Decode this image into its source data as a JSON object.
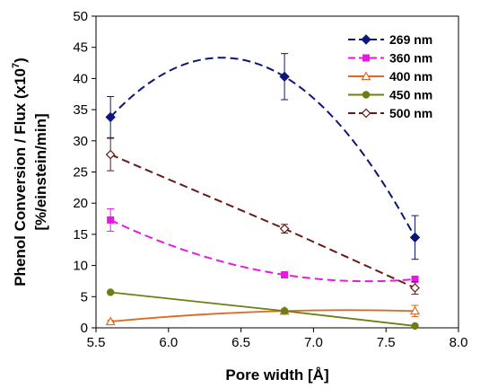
{
  "chart_data": {
    "type": "line",
    "xlabel": "Pore width [Å]",
    "ylabel_line1_prefix": "Phenol Conversion / Flux (x10",
    "ylabel_line1_sup": "7",
    "ylabel_line1_suffix": ")",
    "ylabel_line2": "[%/einstein/min]",
    "xlim": [
      5.5,
      8.0
    ],
    "ylim": [
      0,
      50
    ],
    "xticks": [
      5.5,
      6.0,
      6.5,
      7.0,
      7.5,
      8.0
    ],
    "xtick_labels": [
      "5.5",
      "6.0",
      "6.5",
      "7.0",
      "7.5",
      "8.0"
    ],
    "yticks": [
      0,
      5,
      10,
      15,
      20,
      25,
      30,
      35,
      40,
      45,
      50
    ],
    "ytick_labels": [
      "0",
      "5",
      "10",
      "15",
      "20",
      "25",
      "30",
      "35",
      "40",
      "45",
      "50"
    ],
    "grid": false,
    "legend_position": "top-right",
    "x": [
      5.6,
      6.8,
      7.7
    ],
    "series": [
      {
        "name": "269 nm",
        "values": [
          33.8,
          40.3,
          14.5
        ],
        "errors": [
          3.3,
          3.7,
          3.5
        ],
        "color": "#0c1678",
        "marker": "diamond",
        "dashed": true,
        "curve": "smooth"
      },
      {
        "name": "360 nm",
        "values": [
          17.3,
          8.5,
          7.8
        ],
        "errors": [
          1.8,
          0.3,
          0.3
        ],
        "color": "#e41ae4",
        "marker": "square",
        "dashed": true,
        "curve": "smooth"
      },
      {
        "name": "400 nm",
        "values": [
          1.0,
          2.7,
          2.7
        ],
        "errors": [
          0.2,
          0.3,
          0.9
        ],
        "color": "#dd6a22",
        "marker": "triangle",
        "dashed": false,
        "curve": "smooth"
      },
      {
        "name": "450 nm",
        "values": [
          5.7,
          2.7,
          0.3
        ],
        "errors": [
          0,
          0,
          0
        ],
        "color": "#6f7d15",
        "marker": "circle",
        "dashed": false,
        "curve": "linear"
      },
      {
        "name": "500 nm",
        "values": [
          27.8,
          15.9,
          6.4
        ],
        "errors": [
          2.6,
          0.7,
          1.0
        ],
        "color": "#681a16",
        "marker": "diamond-open",
        "dashed": true,
        "curve": "linear"
      }
    ]
  }
}
